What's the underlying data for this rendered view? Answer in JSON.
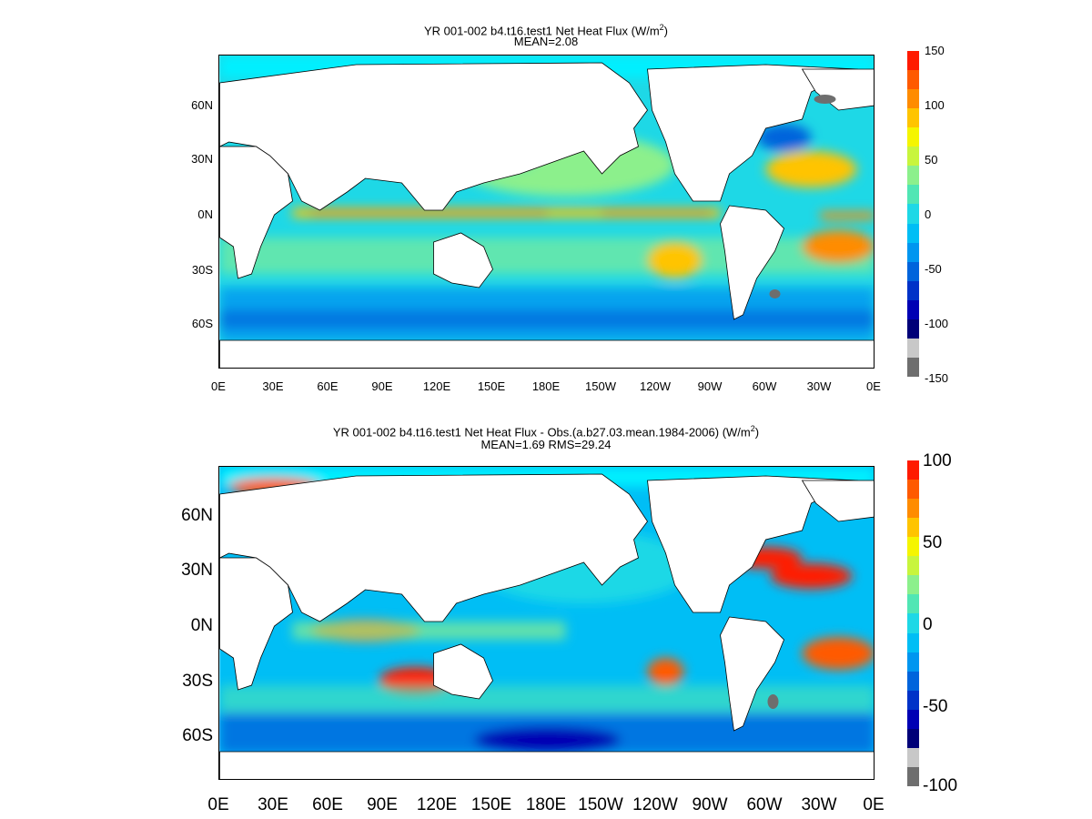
{
  "panels": [
    {
      "id": "top",
      "title_main": "YR 001-002 b4.t16.test1  Net Heat Flux",
      "title_unit_prefix": "(W/m",
      "title_unit_sup": "2",
      "title_unit_suffix": ")",
      "subtitle": "MEAN=2.08",
      "lat_labels": [
        "60N",
        "30N",
        "0N",
        "30S",
        "60S"
      ],
      "lon_labels": [
        "0E",
        "30E",
        "60E",
        "90E",
        "120E",
        "150E",
        "180E",
        "150W",
        "120W",
        "90W",
        "60W",
        "30W",
        "0E"
      ],
      "colorbar": {
        "ticks": [
          "150",
          "100",
          "50",
          "0",
          "-50",
          "-100",
          "-150"
        ],
        "colors": [
          "#ff1a00",
          "#ff5a00",
          "#ff8c00",
          "#ffc400",
          "#f5f500",
          "#c8f53c",
          "#8cf08c",
          "#50e6b4",
          "#1ed8e6",
          "#00bef5",
          "#0096f0",
          "#0064dc",
          "#0032c8",
          "#0000b4",
          "#000078",
          "#c8c8c8",
          "#6e6e6e"
        ]
      }
    },
    {
      "id": "bottom",
      "title_main": "YR 001-002 b4.t16.test1  Net Heat Flux - Obs.(a.b27.03.mean.1984-2006)",
      "title_unit_prefix": "(W/m",
      "title_unit_sup": "2",
      "title_unit_suffix": ")",
      "subtitle": "MEAN=1.69 RMS=29.24",
      "lat_labels": [
        "60N",
        "30N",
        "0N",
        "30S",
        "60S"
      ],
      "lon_labels": [
        "0E",
        "30E",
        "60E",
        "90E",
        "120E",
        "150E",
        "180E",
        "150W",
        "120W",
        "90W",
        "60W",
        "30W",
        "0E"
      ],
      "colorbar": {
        "ticks": [
          "100",
          "50",
          "0",
          "-50",
          "-100"
        ],
        "colors": [
          "#ff1a00",
          "#ff5a00",
          "#ff8c00",
          "#ffc400",
          "#f5f500",
          "#c8f53c",
          "#8cf08c",
          "#50e6b4",
          "#1ed8e6",
          "#00bef5",
          "#0096f0",
          "#0064dc",
          "#0032c8",
          "#0000b4",
          "#000078",
          "#c8c8c8",
          "#6e6e6e"
        ]
      }
    }
  ],
  "colors": {
    "ocean_base": "#1ed8e6",
    "land": "#ffffff",
    "arctic": "#00f0ff",
    "warm": "#ffc400",
    "hot": "#ff3c00",
    "cool": "#0096f0",
    "cold": "#0032c8",
    "green": "#8cf08c"
  }
}
